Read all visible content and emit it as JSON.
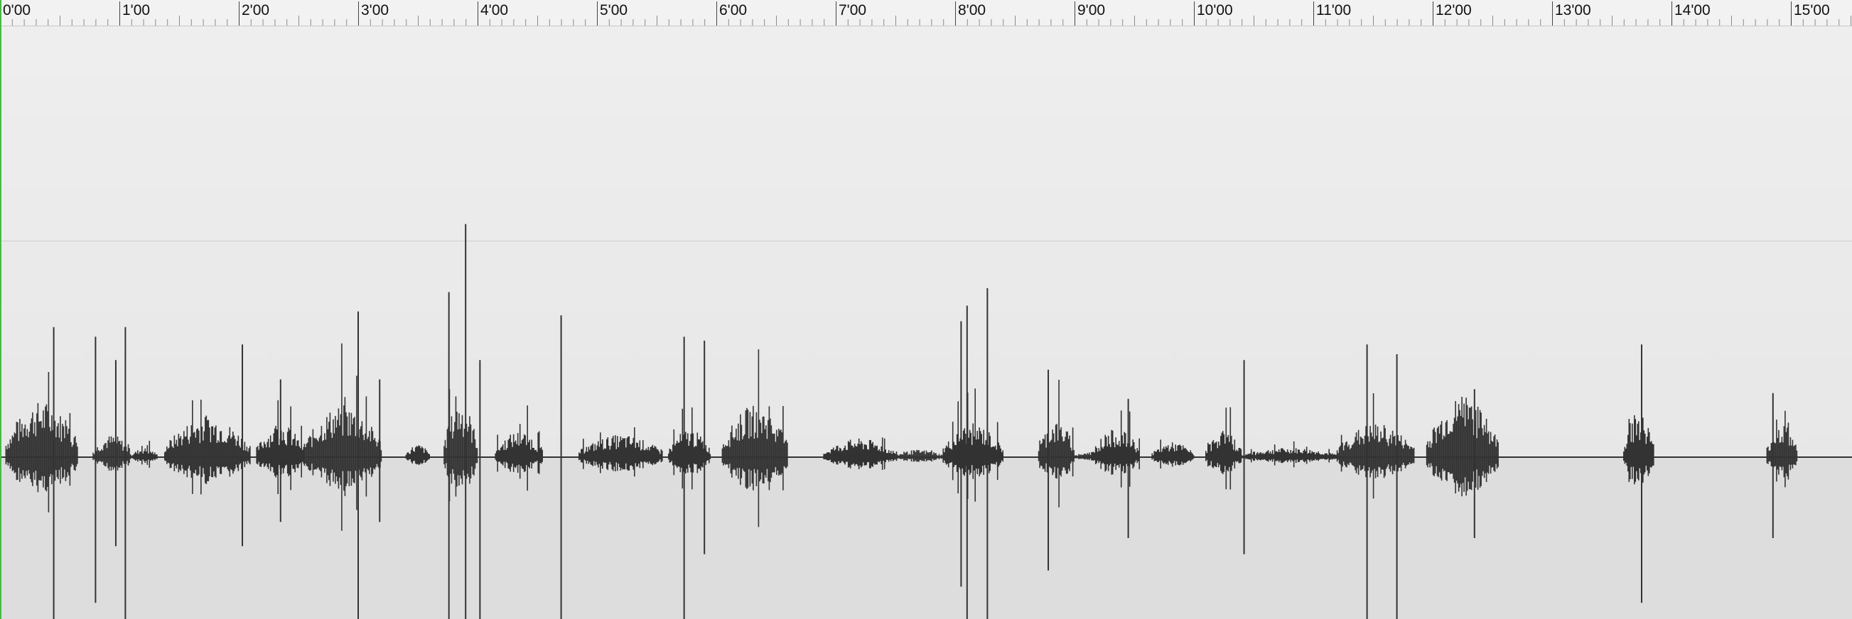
{
  "ruler": {
    "labels": [
      "0'00",
      "1'00",
      "2'00",
      "3'00",
      "4'00",
      "5'00",
      "6'00",
      "7'00",
      "8'00",
      "9'00",
      "10'00",
      "11'00",
      "12'00",
      "13'00",
      "14'00",
      "15'00"
    ]
  },
  "timeline": {
    "minutes_visible": 15.5,
    "minor_ticks_per_minute": 10
  },
  "colors": {
    "waveform": "#333333",
    "playhead": "#3fbf3f",
    "ruler_bg": "#f2f2f2",
    "track_upper": "#ebebeb",
    "track_lower": "#dddddd"
  },
  "waveform": {
    "bursts": [
      {
        "start": 0.05,
        "end": 0.65,
        "amp": 0.3
      },
      {
        "start": 0.78,
        "end": 1.1,
        "amp": 0.12
      },
      {
        "start": 1.1,
        "end": 1.32,
        "amp": 0.05
      },
      {
        "start": 1.38,
        "end": 2.1,
        "amp": 0.22
      },
      {
        "start": 2.15,
        "end": 2.55,
        "amp": 0.18
      },
      {
        "start": 2.55,
        "end": 3.2,
        "amp": 0.28
      },
      {
        "start": 3.4,
        "end": 3.6,
        "amp": 0.07
      },
      {
        "start": 3.72,
        "end": 4.0,
        "amp": 0.3
      },
      {
        "start": 4.15,
        "end": 4.55,
        "amp": 0.14
      },
      {
        "start": 4.85,
        "end": 5.55,
        "amp": 0.12
      },
      {
        "start": 5.6,
        "end": 5.95,
        "amp": 0.15
      },
      {
        "start": 6.05,
        "end": 6.6,
        "amp": 0.28
      },
      {
        "start": 6.9,
        "end": 7.5,
        "amp": 0.1
      },
      {
        "start": 7.5,
        "end": 7.9,
        "amp": 0.04
      },
      {
        "start": 7.9,
        "end": 8.4,
        "amp": 0.18
      },
      {
        "start": 8.7,
        "end": 9.0,
        "amp": 0.2
      },
      {
        "start": 9.0,
        "end": 9.35,
        "amp": 0.03
      },
      {
        "start": 9.15,
        "end": 9.55,
        "amp": 0.15
      },
      {
        "start": 9.65,
        "end": 10.0,
        "amp": 0.08
      },
      {
        "start": 10.1,
        "end": 10.4,
        "amp": 0.14
      },
      {
        "start": 10.4,
        "end": 11.2,
        "amp": 0.05
      },
      {
        "start": 11.2,
        "end": 11.85,
        "amp": 0.18
      },
      {
        "start": 11.95,
        "end": 12.55,
        "amp": 0.32
      },
      {
        "start": 13.6,
        "end": 13.85,
        "amp": 0.25
      },
      {
        "start": 14.8,
        "end": 15.05,
        "amp": 0.18
      }
    ],
    "spikes": [
      {
        "t": 0.45,
        "up": 0.67,
        "down": 1.0
      },
      {
        "t": 0.8,
        "up": 0.62,
        "down": 0.9
      },
      {
        "t": 0.97,
        "up": 0.5,
        "down": 0.55
      },
      {
        "t": 1.05,
        "up": 0.67,
        "down": 1.0
      },
      {
        "t": 2.03,
        "up": 0.58,
        "down": 0.55
      },
      {
        "t": 2.35,
        "up": 0.4,
        "down": 0.4
      },
      {
        "t": 3.0,
        "up": 0.75,
        "down": 1.0
      },
      {
        "t": 3.18,
        "up": 0.4,
        "down": 0.4
      },
      {
        "t": 3.76,
        "up": 0.85,
        "down": 1.0
      },
      {
        "t": 3.9,
        "up": 1.2,
        "down": 1.0
      },
      {
        "t": 4.02,
        "up": 0.5,
        "down": 1.0
      },
      {
        "t": 4.7,
        "up": 0.73,
        "down": 1.0
      },
      {
        "t": 5.73,
        "up": 0.62,
        "down": 1.0
      },
      {
        "t": 5.9,
        "up": 0.6,
        "down": 0.6
      },
      {
        "t": 8.05,
        "up": 0.7,
        "down": 0.8
      },
      {
        "t": 8.1,
        "up": 0.78,
        "down": 1.0
      },
      {
        "t": 8.27,
        "up": 0.87,
        "down": 1.0
      },
      {
        "t": 8.78,
        "up": 0.45,
        "down": 0.7
      },
      {
        "t": 9.45,
        "up": 0.3,
        "down": 0.5
      },
      {
        "t": 10.42,
        "up": 0.5,
        "down": 0.6
      },
      {
        "t": 11.45,
        "up": 0.58,
        "down": 1.0
      },
      {
        "t": 11.7,
        "up": 0.53,
        "down": 1.0
      },
      {
        "t": 12.35,
        "up": 0.35,
        "down": 0.5
      },
      {
        "t": 13.75,
        "up": 0.58,
        "down": 0.9
      },
      {
        "t": 14.85,
        "up": 0.33,
        "down": 0.5
      }
    ]
  }
}
